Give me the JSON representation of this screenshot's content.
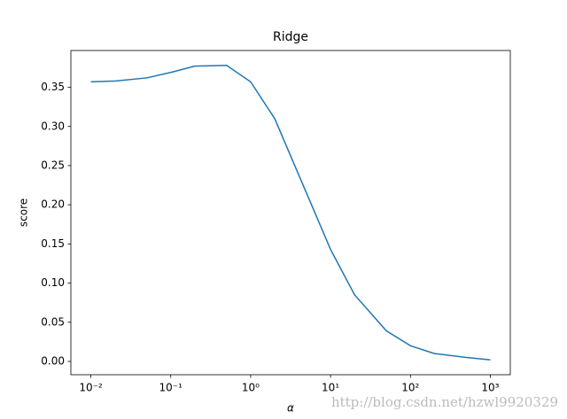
{
  "chart_data": {
    "type": "line",
    "title": "Ridge",
    "xlabel": "α",
    "ylabel": "score",
    "x": [
      0.01,
      0.02,
      0.05,
      0.1,
      0.2,
      0.5,
      1,
      2,
      5,
      10,
      20,
      50,
      100,
      200,
      500,
      1000
    ],
    "series": [
      {
        "name": "Ridge",
        "color": "#1f77b4",
        "values": [
          0.357,
          0.358,
          0.362,
          0.369,
          0.377,
          0.378,
          0.357,
          0.31,
          0.215,
          0.143,
          0.085,
          0.039,
          0.02,
          0.01,
          0.005,
          0.002
        ]
      }
    ],
    "xscale": "log",
    "xlim": [
      0.00562,
      1778
    ],
    "xticks": [
      {
        "value": 0.01,
        "label": "10⁻²"
      },
      {
        "value": 0.1,
        "label": "10⁻¹"
      },
      {
        "value": 1,
        "label": "10⁰"
      },
      {
        "value": 10,
        "label": "10¹"
      },
      {
        "value": 100,
        "label": "10²"
      },
      {
        "value": 1000,
        "label": "10³"
      }
    ],
    "ylim": [
      -0.017,
      0.397
    ],
    "yticks": [
      {
        "value": 0,
        "label": "0.00"
      },
      {
        "value": 0.05,
        "label": "0.05"
      },
      {
        "value": 0.1,
        "label": "0.10"
      },
      {
        "value": 0.15,
        "label": "0.15"
      },
      {
        "value": 0.2,
        "label": "0.20"
      },
      {
        "value": 0.25,
        "label": "0.25"
      },
      {
        "value": 0.3,
        "label": "0.30"
      },
      {
        "value": 0.35,
        "label": "0.35"
      }
    ],
    "grid": false,
    "watermark": "http://blog.csdn.net/hzwl9920329"
  }
}
